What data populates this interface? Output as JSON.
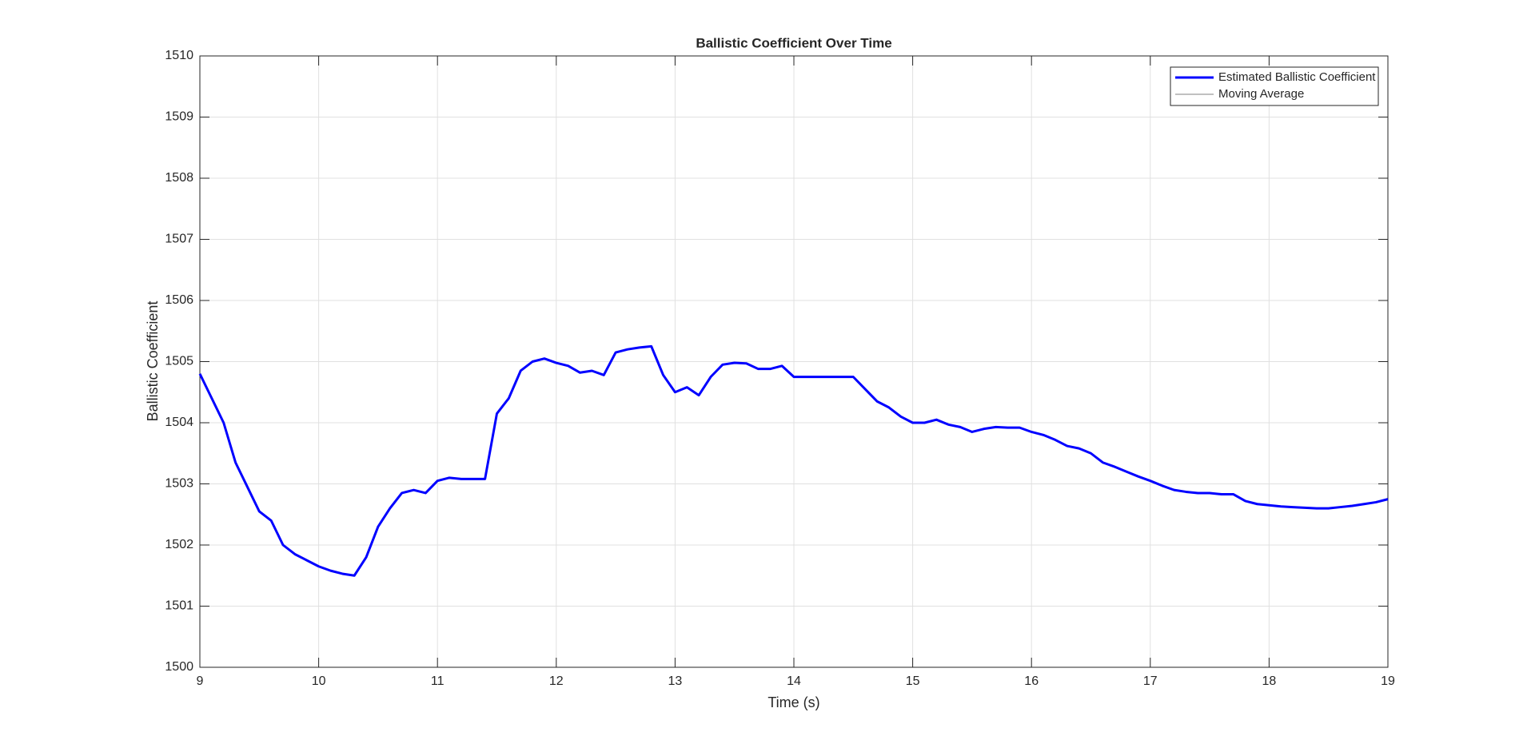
{
  "chart_data": {
    "type": "line",
    "title": "Ballistic Coefficient Over Time",
    "xlabel": "Time (s)",
    "ylabel": "Ballistic Coefficient",
    "x": [
      9.0,
      9.1,
      9.2,
      9.3,
      9.4,
      9.5,
      9.6,
      9.7,
      9.8,
      9.9,
      10.0,
      10.1,
      10.2,
      10.3,
      10.4,
      10.5,
      10.6,
      10.7,
      10.8,
      10.9,
      11.0,
      11.1,
      11.2,
      11.3,
      11.4,
      11.5,
      11.6,
      11.7,
      11.8,
      11.9,
      12.0,
      12.1,
      12.2,
      12.3,
      12.4,
      12.5,
      12.6,
      12.7,
      12.8,
      12.9,
      13.0,
      13.1,
      13.2,
      13.3,
      13.4,
      13.5,
      13.6,
      13.7,
      13.8,
      13.9,
      14.0,
      14.1,
      14.2,
      14.3,
      14.4,
      14.5,
      14.6,
      14.7,
      14.8,
      14.9,
      15.0,
      15.1,
      15.2,
      15.3,
      15.4,
      15.5,
      15.6,
      15.7,
      15.8,
      15.9,
      16.0,
      16.1,
      16.2,
      16.3,
      16.4,
      16.5,
      16.6,
      16.7,
      16.8,
      16.9,
      17.0,
      17.1,
      17.2,
      17.3,
      17.4,
      17.5,
      17.6,
      17.7,
      17.8,
      17.9,
      18.0,
      18.1,
      18.2,
      18.3,
      18.4,
      18.5,
      18.6,
      18.7,
      18.8,
      18.9,
      19.0
    ],
    "series": [
      {
        "name": "Estimated Ballistic Coefficient",
        "color": "#0000ff",
        "width": 3,
        "values": [
          1504.8,
          1504.4,
          1504.0,
          1503.35,
          1502.95,
          1502.55,
          1502.4,
          1502.0,
          1501.85,
          1501.75,
          1501.65,
          1501.58,
          1501.53,
          1501.5,
          1501.8,
          1502.3,
          1502.6,
          1502.85,
          1502.9,
          1502.85,
          1503.05,
          1503.1,
          1503.08,
          1503.08,
          1503.08,
          1504.15,
          1504.4,
          1504.85,
          1505.0,
          1505.05,
          1504.98,
          1504.93,
          1504.82,
          1504.85,
          1504.78,
          1505.15,
          1505.2,
          1505.23,
          1505.25,
          1504.78,
          1504.5,
          1504.58,
          1504.45,
          1504.75,
          1504.95,
          1504.98,
          1504.97,
          1504.88,
          1504.88,
          1504.93,
          1504.75,
          1504.75,
          1504.75,
          1504.75,
          1504.75,
          1504.75,
          1504.55,
          1504.35,
          1504.25,
          1504.1,
          1504.0,
          1504.0,
          1504.05,
          1503.97,
          1503.93,
          1503.85,
          1503.9,
          1503.93,
          1503.92,
          1503.92,
          1503.85,
          1503.8,
          1503.72,
          1503.62,
          1503.58,
          1503.5,
          1503.35,
          1503.28,
          1503.2,
          1503.12,
          1503.05,
          1502.97,
          1502.9,
          1502.87,
          1502.85,
          1502.85,
          1502.83,
          1502.83,
          1502.72,
          1502.67,
          1502.65,
          1502.63,
          1502.62,
          1502.61,
          1502.6,
          1502.6,
          1502.62,
          1502.64,
          1502.67,
          1502.7,
          1502.75
        ]
      },
      {
        "name": "Moving Average",
        "color": "#808080",
        "width": 1,
        "values": [
          null,
          null,
          null,
          null,
          null,
          null,
          null,
          null,
          null,
          null,
          null,
          null,
          null,
          null,
          null,
          null,
          null,
          null,
          null,
          null,
          null,
          null,
          null,
          null,
          null,
          null,
          null,
          null,
          null,
          null,
          null,
          null,
          null,
          null,
          null,
          null,
          null,
          null,
          null,
          null,
          null,
          null,
          null,
          null,
          null,
          null,
          null,
          null,
          null,
          null,
          null,
          null,
          null,
          null,
          null,
          null,
          null,
          null,
          null,
          null,
          null,
          null,
          null,
          null,
          null,
          null,
          null,
          null,
          null,
          null,
          null,
          null,
          null,
          null,
          null,
          null,
          null,
          null,
          null,
          null,
          null,
          null,
          null,
          null,
          null,
          null,
          null,
          null,
          null,
          null,
          null,
          null,
          null,
          null,
          null,
          null,
          null,
          null,
          null,
          null,
          null
        ]
      }
    ],
    "xlim": [
      9,
      19
    ],
    "xticks": [
      9,
      10,
      11,
      12,
      13,
      14,
      15,
      16,
      17,
      18,
      19
    ],
    "ylim": [
      1500,
      1510
    ],
    "yticks": [
      1500,
      1501,
      1502,
      1503,
      1504,
      1505,
      1506,
      1507,
      1508,
      1509,
      1510
    ],
    "grid": true,
    "legend": "upper right"
  }
}
